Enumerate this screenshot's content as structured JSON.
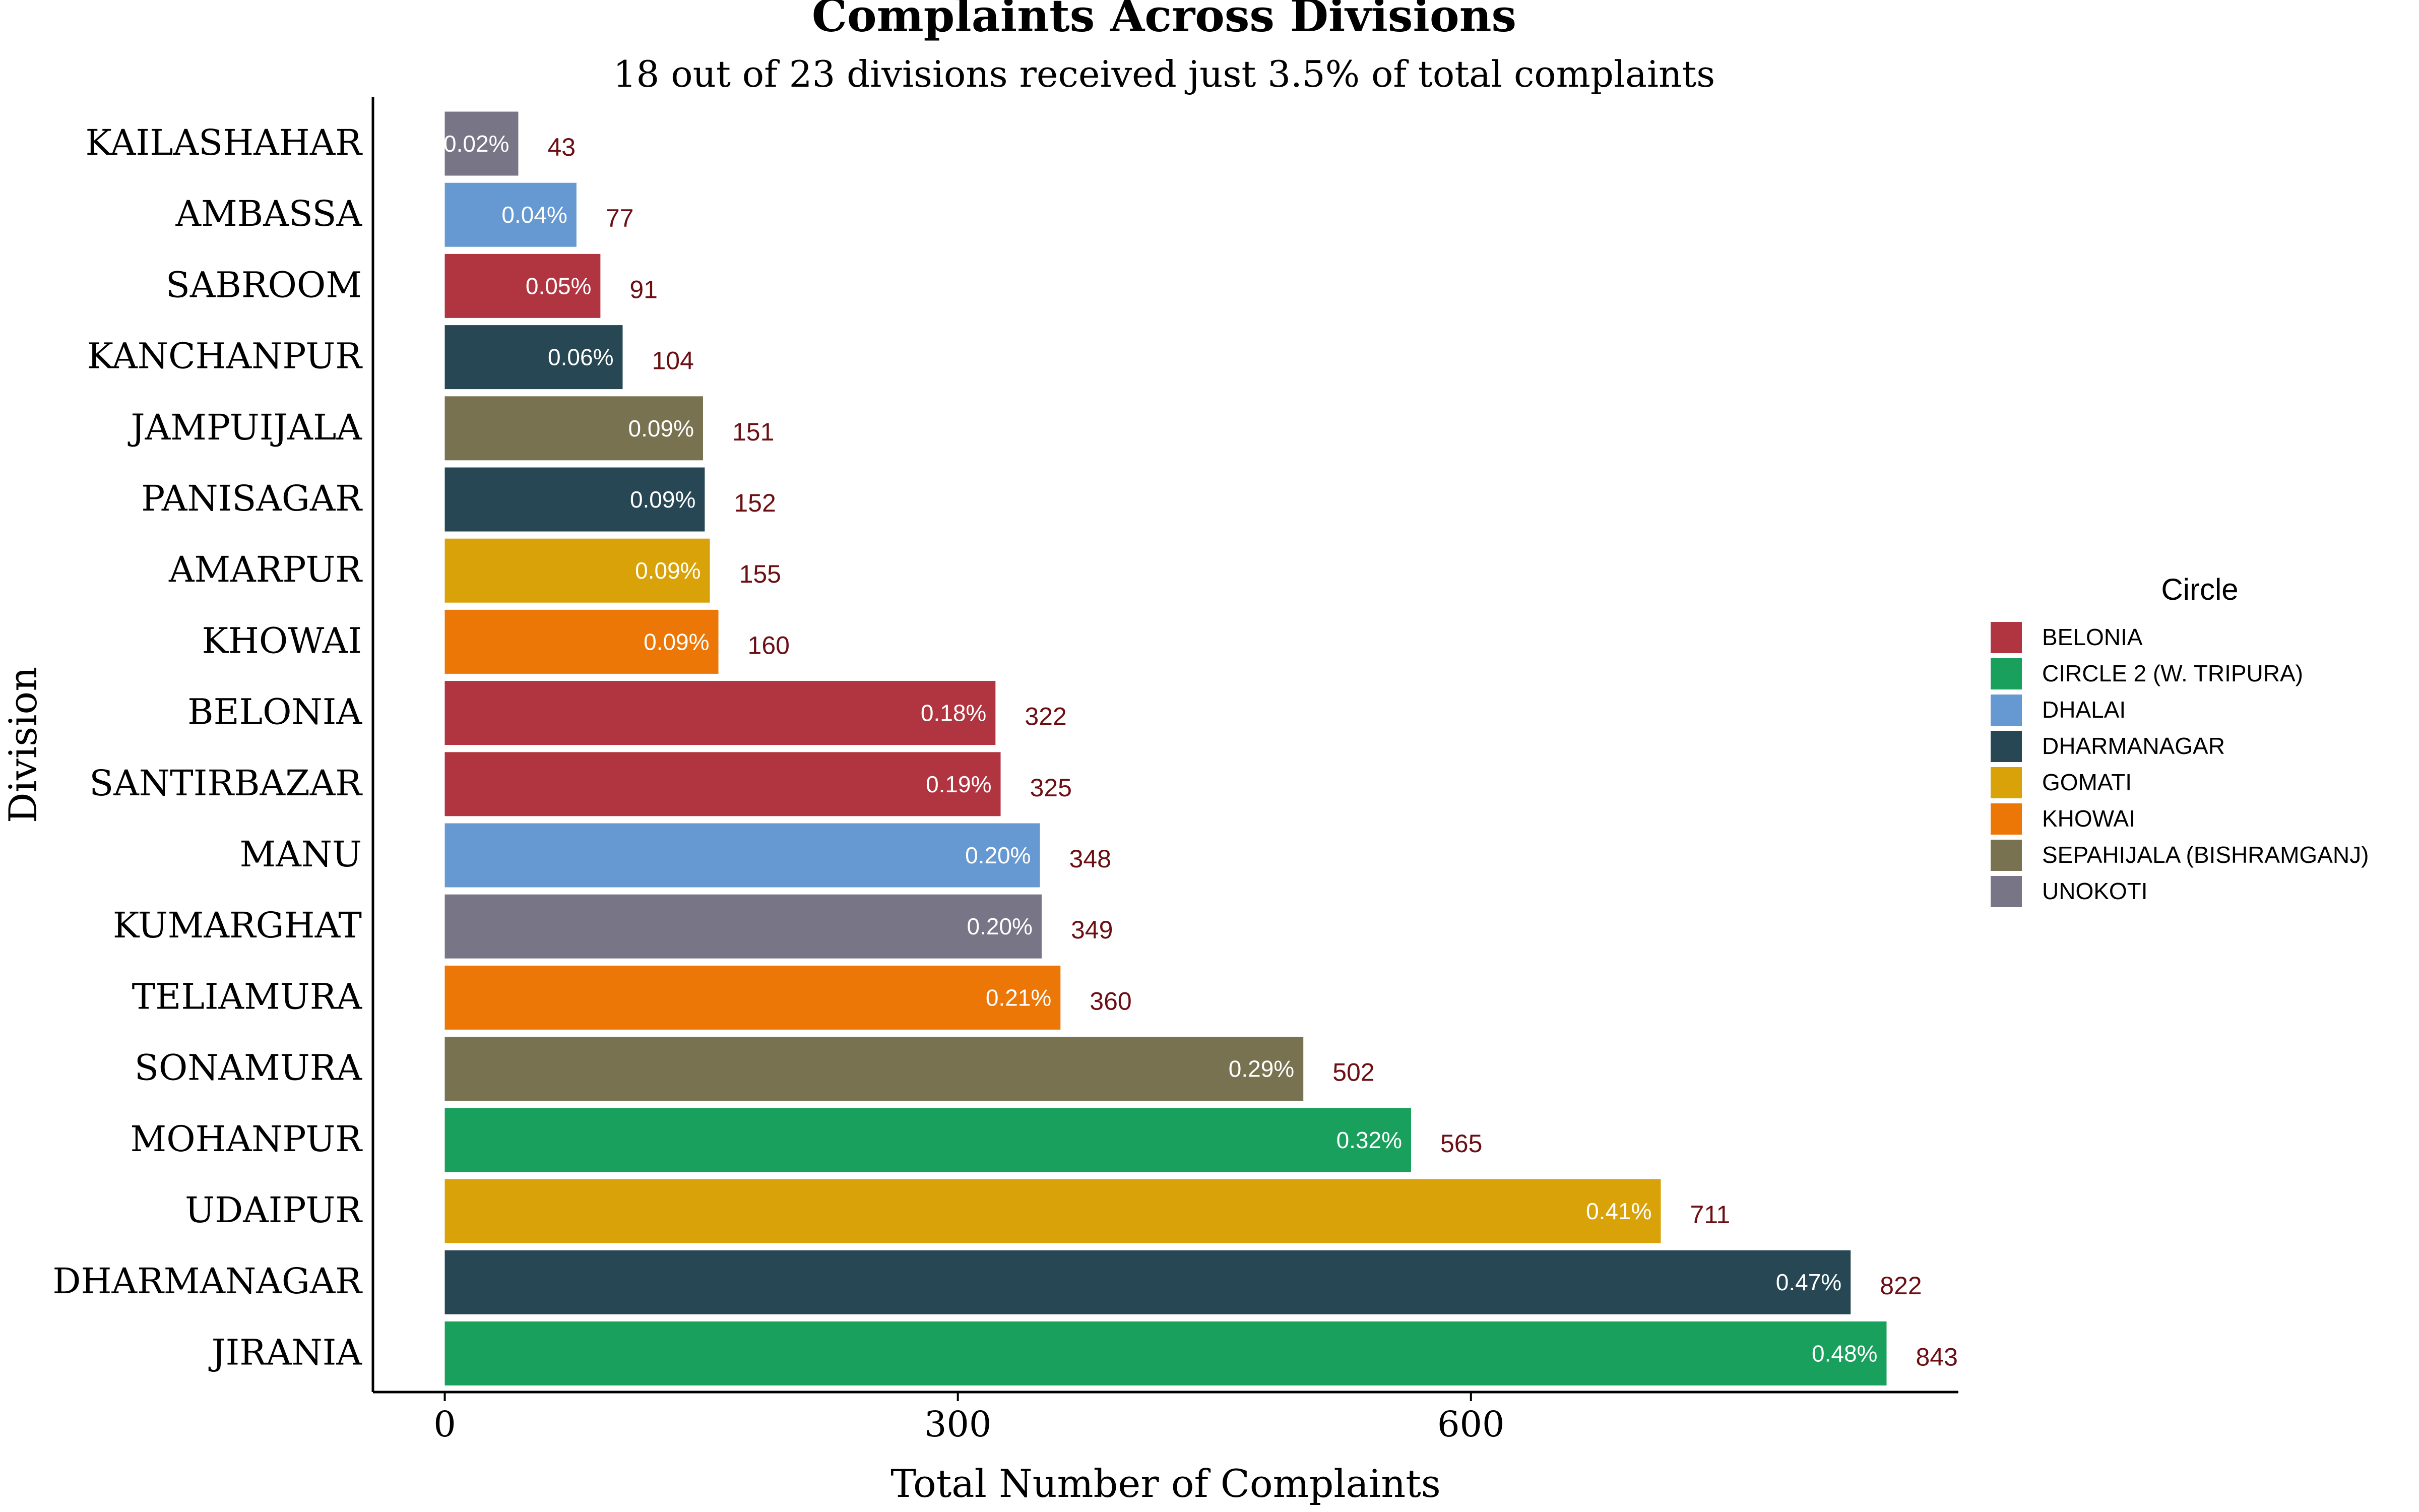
{
  "chart_data": {
    "type": "bar",
    "orientation": "horizontal",
    "title": "Complaints Across Divisions",
    "subtitle": "18 out of 23 divisions received just 3.5% of total complaints",
    "xlabel": "Total Number of Complaints",
    "ylabel": "Division",
    "xlim": [
      -42,
      885
    ],
    "xticks": [
      0,
      300,
      600
    ],
    "grid": false,
    "legend": {
      "title": "Circle",
      "position": "right",
      "entries": [
        {
          "name": "BELONIA",
          "color": "#B13541"
        },
        {
          "name": "CIRCLE 2 (W. TRIPURA)",
          "color": "#18A05C"
        },
        {
          "name": "DHALAI",
          "color": "#6699D2"
        },
        {
          "name": "DHARMANAGAR",
          "color": "#264753"
        },
        {
          "name": "GOMATI",
          "color": "#D9A208"
        },
        {
          "name": "KHOWAI",
          "color": "#EC7707"
        },
        {
          "name": "SEPAHIJALA (BISHRAMGANJ)",
          "color": "#797251"
        },
        {
          "name": "UNOKOTI",
          "color": "#777586"
        }
      ]
    },
    "bars": [
      {
        "division": "KAILASHAHAR",
        "value": 43,
        "pct": "0.02%",
        "circle": "UNOKOTI"
      },
      {
        "division": "AMBASSA",
        "value": 77,
        "pct": "0.04%",
        "circle": "DHALAI"
      },
      {
        "division": "SABROOM",
        "value": 91,
        "pct": "0.05%",
        "circle": "BELONIA"
      },
      {
        "division": "KANCHANPUR",
        "value": 104,
        "pct": "0.06%",
        "circle": "DHARMANAGAR"
      },
      {
        "division": "JAMPUIJALA",
        "value": 151,
        "pct": "0.09%",
        "circle": "SEPAHIJALA (BISHRAMGANJ)"
      },
      {
        "division": "PANISAGAR",
        "value": 152,
        "pct": "0.09%",
        "circle": "DHARMANAGAR"
      },
      {
        "division": "AMARPUR",
        "value": 155,
        "pct": "0.09%",
        "circle": "GOMATI"
      },
      {
        "division": "KHOWAI",
        "value": 160,
        "pct": "0.09%",
        "circle": "KHOWAI"
      },
      {
        "division": "BELONIA",
        "value": 322,
        "pct": "0.18%",
        "circle": "BELONIA"
      },
      {
        "division": "SANTIRBAZAR",
        "value": 325,
        "pct": "0.19%",
        "circle": "BELONIA"
      },
      {
        "division": "MANU",
        "value": 348,
        "pct": "0.20%",
        "circle": "DHALAI"
      },
      {
        "division": "KUMARGHAT",
        "value": 349,
        "pct": "0.20%",
        "circle": "UNOKOTI"
      },
      {
        "division": "TELIAMURA",
        "value": 360,
        "pct": "0.21%",
        "circle": "KHOWAI"
      },
      {
        "division": "SONAMURA",
        "value": 502,
        "pct": "0.29%",
        "circle": "SEPAHIJALA (BISHRAMGANJ)"
      },
      {
        "division": "MOHANPUR",
        "value": 565,
        "pct": "0.32%",
        "circle": "CIRCLE 2 (W. TRIPURA)"
      },
      {
        "division": "UDAIPUR",
        "value": 711,
        "pct": "0.41%",
        "circle": "GOMATI"
      },
      {
        "division": "DHARMANAGAR",
        "value": 822,
        "pct": "0.47%",
        "circle": "DHARMANAGAR"
      },
      {
        "division": "JIRANIA",
        "value": 843,
        "pct": "0.48%",
        "circle": "CIRCLE 2 (W. TRIPURA)"
      }
    ],
    "value_label_color": "#6B0F14",
    "pct_label_color": "#FFFFFF"
  }
}
